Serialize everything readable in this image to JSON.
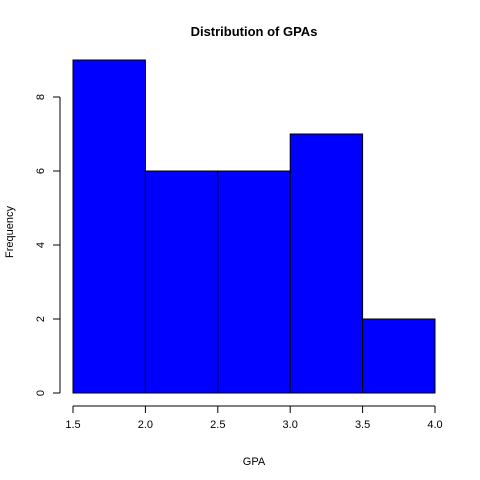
{
  "chart_data": {
    "type": "bar",
    "title": "Distribution of GPAs",
    "xlabel": "GPA",
    "ylabel": "Frequency",
    "bins": [
      {
        "start": 1.5,
        "end": 2.0,
        "value": 9
      },
      {
        "start": 2.0,
        "end": 2.5,
        "value": 6
      },
      {
        "start": 2.5,
        "end": 3.0,
        "value": 6
      },
      {
        "start": 3.0,
        "end": 3.5,
        "value": 7
      },
      {
        "start": 3.5,
        "end": 4.0,
        "value": 2
      }
    ],
    "xlim": [
      1.5,
      4.0
    ],
    "ylim": [
      0,
      9
    ],
    "x_ticks": [
      "1.5",
      "2.0",
      "2.5",
      "3.0",
      "3.5",
      "4.0"
    ],
    "y_ticks": [
      "0",
      "2",
      "4",
      "6",
      "8"
    ],
    "bar_color": "#0000ff",
    "bar_edge_color": "#000000",
    "grid": false,
    "legend": "none"
  }
}
